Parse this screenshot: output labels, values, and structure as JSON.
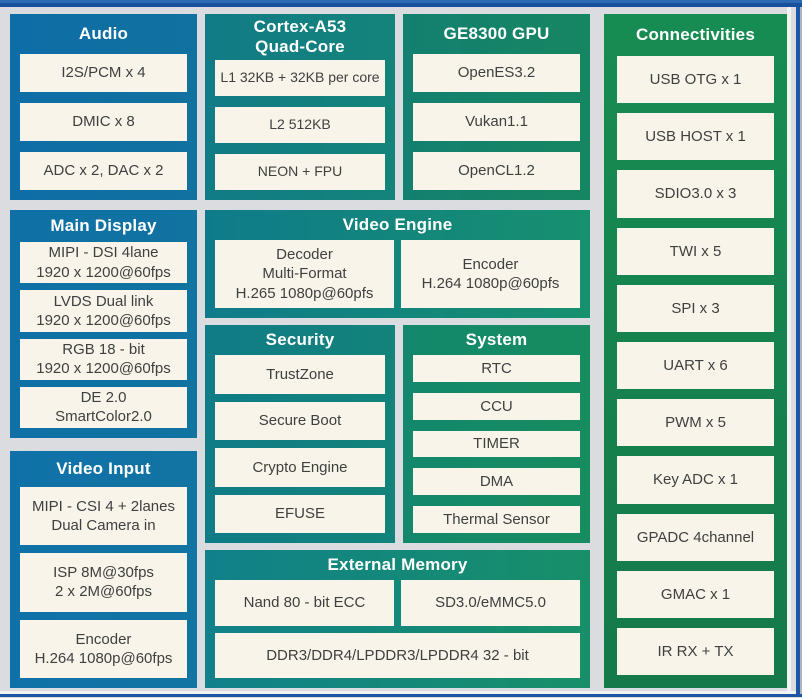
{
  "colors": {
    "background": "#DADCDF",
    "top_bar_light": "#2E6BB3",
    "top_bar_dark": "#17519D",
    "frame_blue": "#1C56A5",
    "frame_white": "#F1F2F3",
    "frame_edge_gray": "#AEB4BE",
    "item_background": "#F8F4E9",
    "item_text": "#3F4040",
    "header_text": "#FFFFFF"
  },
  "panels": {
    "audio": {
      "title": "Audio",
      "gradient": [
        "#0E6DA6",
        "#11719F"
      ],
      "items": [
        "I2S/PCM x 4",
        "DMIC x 8",
        "ADC x 2, DAC x 2"
      ]
    },
    "cortex": {
      "title": "Cortex-A53\nQuad-Core",
      "gradient": [
        "#117B86",
        "#14847A"
      ],
      "items": [
        "L1 32KB + 32KB per core",
        "L2 512KB",
        "NEON + FPU"
      ]
    },
    "gpu": {
      "title": "GE8300 GPU",
      "gradient": [
        "#138070",
        "#168661"
      ],
      "items": [
        "OpenES3.2",
        "Vukan1.1",
        "OpenCL1.2"
      ]
    },
    "connectivities": {
      "title": "Connectivities",
      "gradient": [
        "#178C52",
        "#15794A"
      ],
      "gradient_dir": "180deg",
      "items": [
        "USB OTG x 1",
        "USB HOST x 1",
        "SDIO3.0 x 3",
        "TWI x 5",
        "SPI x 3",
        "UART x 6",
        "PWM x 5",
        "Key ADC x 1",
        "GPADC 4channel",
        "GMAC x 1",
        "IR RX + TX"
      ]
    },
    "main_display": {
      "title": "Main Display",
      "gradient": [
        "#0F70A6",
        "#1173A0"
      ],
      "items": [
        "MIPI - DSI 4lane\n1920 x 1200@60fps",
        "LVDS Dual link\n1920 x 1200@60fps",
        "RGB 18 - bit\n1920 x 1200@60fps",
        "DE 2.0\nSmartColor2.0"
      ]
    },
    "video_engine": {
      "title": "Video Engine",
      "gradient": [
        "#0F7B8A",
        "#17906E"
      ],
      "items": [
        "Decoder\nMulti-Format\nH.265 1080p@60pfs",
        "Encoder\nH.264 1080p@60pfs"
      ]
    },
    "security": {
      "title": "Security",
      "gradient": [
        "#107C87",
        "#13837A"
      ],
      "items": [
        "TrustZone",
        "Secure Boot",
        "Crypto Engine",
        "EFUSE"
      ]
    },
    "system": {
      "title": "System",
      "gradient": [
        "#14886C",
        "#168C5F"
      ],
      "items": [
        "RTC",
        "CCU",
        "TIMER",
        "DMA",
        "Thermal Sensor"
      ]
    },
    "video_input": {
      "title": "Video Input",
      "gradient": [
        "#0F71A8",
        "#1174A2"
      ],
      "items": [
        "MIPI - CSI 4 + 2lanes\nDual Camera in",
        "ISP 8M@30fps\n2 x 2M@60fps",
        "Encoder\nH.264 1080p@60fps"
      ]
    },
    "external_memory": {
      "title": "External Memory",
      "gradient": [
        "#10818A",
        "#188F68"
      ],
      "items": [
        "Nand 80 - bit ECC",
        "SD3.0/eMMC5.0",
        "DDR3/DDR4/LPDDR3/LPDDR4 32 - bit"
      ]
    }
  }
}
